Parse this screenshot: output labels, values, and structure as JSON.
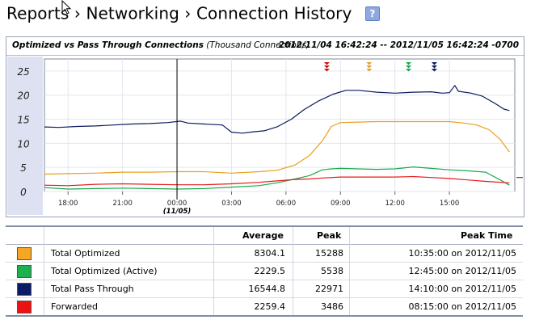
{
  "breadcrumb": {
    "items": [
      "Reports",
      "Networking",
      "Connection History"
    ],
    "separator": "›",
    "help_label": "?"
  },
  "chart": {
    "title_bold": "Optimized vs Pass Through Connections",
    "title_unit": "(Thousand Connections)",
    "range": "2012/11/04 16:42:24 -- 2012/11/05 16:42:24 -0700",
    "marker_label": "(11/05)"
  },
  "chart_data": {
    "type": "line",
    "y_ticks": [
      "25",
      "20",
      "15",
      "10",
      "5",
      "0"
    ],
    "ylim": [
      0,
      27.5
    ],
    "x_ticks": [
      "18:00",
      "21:00",
      "00:00",
      "03:00",
      "06:00",
      "09:00",
      "12:00",
      "15:00"
    ],
    "grid": true,
    "series": [
      {
        "name": "Total Pass Through",
        "color": "#0a1a5c",
        "values": [
          [
            16.7,
            13.4
          ],
          [
            17.5,
            13.3
          ],
          [
            18.5,
            13.5
          ],
          [
            19.5,
            13.6
          ],
          [
            20.5,
            13.8
          ],
          [
            21.5,
            14.0
          ],
          [
            22.5,
            14.1
          ],
          [
            23.5,
            14.3
          ],
          [
            24.2,
            14.6
          ],
          [
            24.6,
            14.2
          ],
          [
            25.5,
            14.0
          ],
          [
            26.5,
            13.8
          ],
          [
            27.0,
            12.3
          ],
          [
            27.6,
            12.1
          ],
          [
            28.2,
            12.4
          ],
          [
            28.8,
            12.6
          ],
          [
            29.5,
            13.4
          ],
          [
            30.3,
            15.0
          ],
          [
            31.0,
            17.0
          ],
          [
            31.8,
            18.8
          ],
          [
            32.6,
            20.2
          ],
          [
            33.3,
            21.0
          ],
          [
            34.0,
            21.0
          ],
          [
            35.0,
            20.6
          ],
          [
            36.0,
            20.4
          ],
          [
            37.0,
            20.6
          ],
          [
            38.0,
            20.7
          ],
          [
            38.6,
            20.4
          ],
          [
            39.0,
            20.5
          ],
          [
            39.3,
            22.0
          ],
          [
            39.5,
            20.8
          ],
          [
            40.2,
            20.4
          ],
          [
            40.8,
            19.8
          ],
          [
            41.5,
            18.3
          ],
          [
            42.0,
            17.1
          ],
          [
            42.3,
            16.8
          ]
        ]
      },
      {
        "name": "Total Optimized",
        "color": "#e8a020",
        "values": [
          [
            16.7,
            3.6
          ],
          [
            18.0,
            3.7
          ],
          [
            19.5,
            3.8
          ],
          [
            21.0,
            4.0
          ],
          [
            22.5,
            4.0
          ],
          [
            24.0,
            4.1
          ],
          [
            25.5,
            4.1
          ],
          [
            27.0,
            3.8
          ],
          [
            28.5,
            4.1
          ],
          [
            29.5,
            4.4
          ],
          [
            30.5,
            5.5
          ],
          [
            31.3,
            7.5
          ],
          [
            32.0,
            10.5
          ],
          [
            32.5,
            13.5
          ],
          [
            33.0,
            14.3
          ],
          [
            34.0,
            14.4
          ],
          [
            35.0,
            14.5
          ],
          [
            36.0,
            14.5
          ],
          [
            37.0,
            14.5
          ],
          [
            38.0,
            14.5
          ],
          [
            39.0,
            14.5
          ],
          [
            39.8,
            14.2
          ],
          [
            40.5,
            13.8
          ],
          [
            41.2,
            12.8
          ],
          [
            41.8,
            10.8
          ],
          [
            42.3,
            8.2
          ]
        ]
      },
      {
        "name": "Total Optimized (Active)",
        "color": "#1aa84a",
        "values": [
          [
            16.7,
            0.8
          ],
          [
            18.0,
            0.5
          ],
          [
            19.5,
            0.6
          ],
          [
            21.0,
            0.7
          ],
          [
            22.5,
            0.6
          ],
          [
            24.0,
            0.5
          ],
          [
            25.5,
            0.6
          ],
          [
            27.0,
            0.9
          ],
          [
            28.5,
            1.2
          ],
          [
            29.5,
            1.8
          ],
          [
            30.5,
            2.6
          ],
          [
            31.3,
            3.3
          ],
          [
            32.0,
            4.5
          ],
          [
            32.5,
            4.7
          ],
          [
            33.0,
            4.8
          ],
          [
            34.0,
            4.7
          ],
          [
            35.0,
            4.6
          ],
          [
            36.0,
            4.7
          ],
          [
            37.0,
            5.1
          ],
          [
            38.0,
            4.8
          ],
          [
            39.0,
            4.5
          ],
          [
            40.0,
            4.3
          ],
          [
            41.0,
            4.0
          ],
          [
            41.8,
            2.4
          ],
          [
            42.3,
            1.3
          ]
        ]
      },
      {
        "name": "Forwarded",
        "color": "#e81a1a",
        "values": [
          [
            16.7,
            1.3
          ],
          [
            18.0,
            1.2
          ],
          [
            19.5,
            1.5
          ],
          [
            21.0,
            1.6
          ],
          [
            22.5,
            1.5
          ],
          [
            24.0,
            1.4
          ],
          [
            25.5,
            1.4
          ],
          [
            27.0,
            1.6
          ],
          [
            28.5,
            1.9
          ],
          [
            29.5,
            2.2
          ],
          [
            30.5,
            2.5
          ],
          [
            31.3,
            2.6
          ],
          [
            32.0,
            2.8
          ],
          [
            33.0,
            3.0
          ],
          [
            34.0,
            3.0
          ],
          [
            35.0,
            3.0
          ],
          [
            36.0,
            3.0
          ],
          [
            37.0,
            3.1
          ],
          [
            38.0,
            2.9
          ],
          [
            39.0,
            2.7
          ],
          [
            40.0,
            2.4
          ],
          [
            41.0,
            2.1
          ],
          [
            42.3,
            1.8
          ]
        ]
      }
    ],
    "marker_x": 24.0,
    "peak_markers": [
      {
        "series": "Forwarded",
        "x": 32.25,
        "color": "#d01010"
      },
      {
        "series": "Total Optimized",
        "x": 34.58,
        "color": "#e8a020"
      },
      {
        "series": "Total Optimized (Active)",
        "x": 36.75,
        "color": "#1aa84a"
      },
      {
        "series": "Total Pass Through",
        "x": 38.17,
        "color": "#0a1a5c"
      }
    ]
  },
  "legend": {
    "headers": {
      "average": "Average",
      "peak": "Peak",
      "peak_time": "Peak Time"
    },
    "rows": [
      {
        "label": "Total Optimized",
        "color": "#f5a623",
        "average": "8304.1",
        "peak": "15288",
        "peak_time": "10:35:00 on 2012/11/05"
      },
      {
        "label": "Total Optimized (Active)",
        "color": "#1db04e",
        "average": "2229.5",
        "peak": "5538",
        "peak_time": "12:45:00 on 2012/11/05"
      },
      {
        "label": "Total Pass Through",
        "color": "#0b1a66",
        "average": "16544.8",
        "peak": "22971",
        "peak_time": "14:10:00 on 2012/11/05"
      },
      {
        "label": "Forwarded",
        "color": "#ee1111",
        "average": "2259.4",
        "peak": "3486",
        "peak_time": "08:15:00 on 2012/11/05"
      }
    ]
  }
}
